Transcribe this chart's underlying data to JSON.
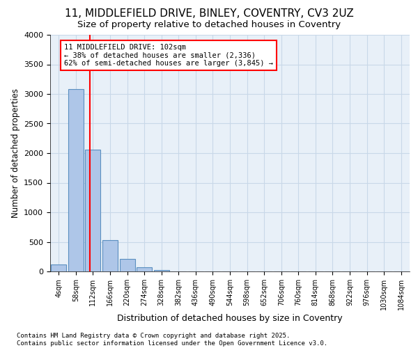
{
  "title_line1": "11, MIDDLEFIELD DRIVE, BINLEY, COVENTRY, CV3 2UZ",
  "title_line2": "Size of property relative to detached houses in Coventry",
  "xlabel": "Distribution of detached houses by size in Coventry",
  "ylabel": "Number of detached properties",
  "footer": "Contains HM Land Registry data © Crown copyright and database right 2025.\nContains public sector information licensed under the Open Government Licence v3.0.",
  "bin_labels": [
    "4sqm",
    "58sqm",
    "112sqm",
    "166sqm",
    "220sqm",
    "274sqm",
    "328sqm",
    "382sqm",
    "436sqm",
    "490sqm",
    "544sqm",
    "598sqm",
    "652sqm",
    "706sqm",
    "760sqm",
    "814sqm",
    "868sqm",
    "922sqm",
    "976sqm",
    "1030sqm",
    "1084sqm"
  ],
  "bar_values": [
    120,
    3080,
    2060,
    530,
    210,
    70,
    20,
    5,
    2,
    1,
    1,
    0,
    0,
    0,
    0,
    0,
    0,
    0,
    0,
    0,
    0
  ],
  "bar_color": "#aec6e8",
  "bar_edge_color": "#5a8fc0",
  "grid_color": "#c8d8e8",
  "background_color": "#e8f0f8",
  "vline_color": "red",
  "annotation_text": "11 MIDDLEFIELD DRIVE: 102sqm\n← 38% of detached houses are smaller (2,336)\n62% of semi-detached houses are larger (3,845) →",
  "annotation_box_color": "white",
  "annotation_box_edge": "red",
  "ylim": [
    0,
    4000
  ],
  "yticks": [
    0,
    500,
    1000,
    1500,
    2000,
    2500,
    3000,
    3500,
    4000
  ]
}
